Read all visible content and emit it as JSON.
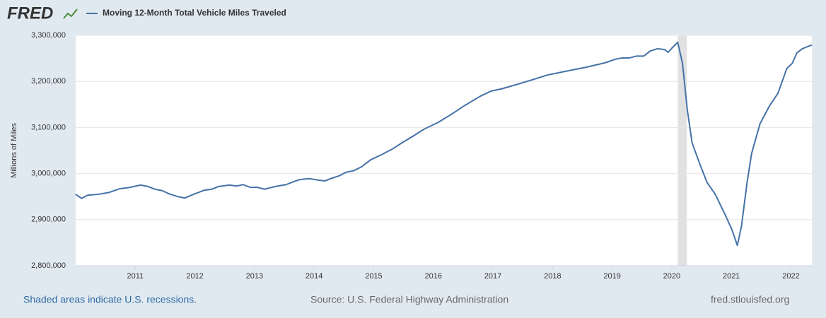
{
  "chart_data": {
    "type": "line",
    "logo": "FRED",
    "y_label": "Millions of Miles",
    "notes": {
      "recessions": "Shaded areas indicate U.S. recessions.",
      "source": "Source: U.S. Federal Highway Administration",
      "site": "fred.stlouisfed.org"
    },
    "x": [
      2010.0,
      2010.1,
      2010.2,
      2010.38,
      2010.56,
      2010.74,
      2010.91,
      2011.09,
      2011.21,
      2011.33,
      2011.45,
      2011.57,
      2011.71,
      2011.83,
      2011.98,
      2012.16,
      2012.28,
      2012.4,
      2012.58,
      2012.7,
      2012.81,
      2012.93,
      2013.05,
      2013.17,
      2013.35,
      2013.53,
      2013.65,
      2013.76,
      2013.92,
      2014.06,
      2014.18,
      2014.3,
      2014.42,
      2014.54,
      2014.66,
      2014.8,
      2014.95,
      2015.13,
      2015.31,
      2015.49,
      2015.67,
      2015.84,
      2016.08,
      2016.32,
      2016.53,
      2016.79,
      2016.97,
      2017.15,
      2017.39,
      2017.62,
      2017.92,
      2018.22,
      2018.57,
      2018.87,
      2019.05,
      2019.17,
      2019.29,
      2019.41,
      2019.53,
      2019.64,
      2019.76,
      2019.88,
      2019.94,
      2020.0,
      2020.1,
      2020.18,
      2020.26,
      2020.34,
      2020.47,
      2020.59,
      2020.73,
      2020.89,
      2021.01,
      2021.1,
      2021.17,
      2021.26,
      2021.34,
      2021.48,
      2021.64,
      2021.78,
      2021.93,
      2022.02,
      2022.1,
      2022.19,
      2022.35
    ],
    "series": [
      {
        "name": "Moving 12-Month Total Vehicle Miles Traveled",
        "color": "#4572a7",
        "values": [
          2955000,
          2946000,
          2953000,
          2955000,
          2959000,
          2967000,
          2970000,
          2975000,
          2972000,
          2966000,
          2963000,
          2956000,
          2950000,
          2947000,
          2955000,
          2964000,
          2966000,
          2972000,
          2975000,
          2973000,
          2976000,
          2970000,
          2970000,
          2966000,
          2972000,
          2976000,
          2982000,
          2987000,
          2989000,
          2986000,
          2984000,
          2990000,
          2995000,
          3003000,
          3006000,
          3015000,
          3030000,
          3041000,
          3053000,
          3068000,
          3082000,
          3096000,
          3111000,
          3130000,
          3148000,
          3168000,
          3179000,
          3184000,
          3193000,
          3202000,
          3214000,
          3222000,
          3231000,
          3240000,
          3248000,
          3251000,
          3251000,
          3255000,
          3255000,
          3266000,
          3271000,
          3269000,
          3263000,
          3272000,
          3285000,
          3239000,
          3139000,
          3067000,
          3021000,
          2981000,
          2955000,
          2912000,
          2878000,
          2844000,
          2886000,
          2978000,
          3044000,
          3108000,
          3147000,
          3174000,
          3228000,
          3239000,
          3262000,
          3271000,
          3279000
        ]
      }
    ],
    "recessions": [
      [
        2020.1,
        2020.25
      ]
    ],
    "recession_color": "#e1e1e1",
    "xlim": [
      2010.0,
      2022.35
    ],
    "xticks": [
      2011,
      2012,
      2013,
      2014,
      2015,
      2016,
      2017,
      2018,
      2019,
      2020,
      2021,
      2022
    ],
    "ylim": [
      2800000,
      3300000
    ],
    "yticks": [
      {
        "value": 2800000,
        "label": "2,800,000"
      },
      {
        "value": 2900000,
        "label": "2,900,000"
      },
      {
        "value": 3000000,
        "label": "3,000,000"
      },
      {
        "value": 3100000,
        "label": "3,100,000"
      },
      {
        "value": 3200000,
        "label": "3,200,000"
      },
      {
        "value": 3300000,
        "label": "3,300,000"
      }
    ],
    "grid": true
  }
}
